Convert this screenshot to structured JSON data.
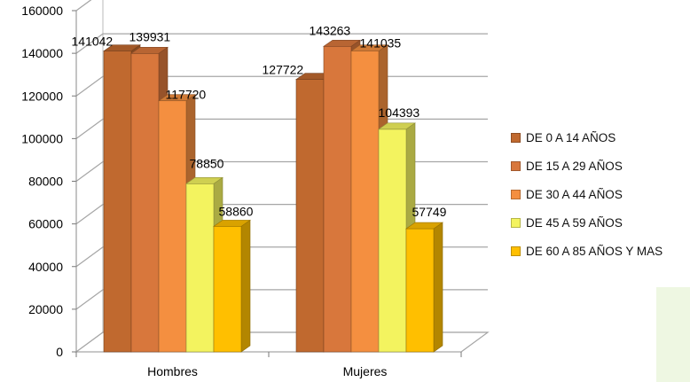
{
  "chart_data": {
    "type": "bar",
    "categories": [
      "Hombres",
      "Mujeres"
    ],
    "series": [
      {
        "name": "DE 0 A 14 AÑOS",
        "values": [
          141042,
          127722
        ],
        "color": "#c0692f"
      },
      {
        "name": "DE 15 A 29 AÑOS",
        "values": [
          139931,
          143263
        ],
        "color": "#d8773c"
      },
      {
        "name": "DE 30 A 44 AÑOS",
        "values": [
          117720,
          141035
        ],
        "color": "#f48f40"
      },
      {
        "name": "DE 45 A 59 AÑOS",
        "values": [
          78850,
          104393
        ],
        "color": "#f3f35f"
      },
      {
        "name": "DE 60 A 85 AÑOS Y MAS",
        "values": [
          58860,
          57749
        ],
        "color": "#ffbf00"
      }
    ],
    "ylim": [
      0,
      160000
    ],
    "yticks": [
      0,
      20000,
      40000,
      60000,
      80000,
      100000,
      120000,
      140000,
      160000
    ],
    "grid": true,
    "legend_position": "right",
    "style": "3d-column"
  }
}
